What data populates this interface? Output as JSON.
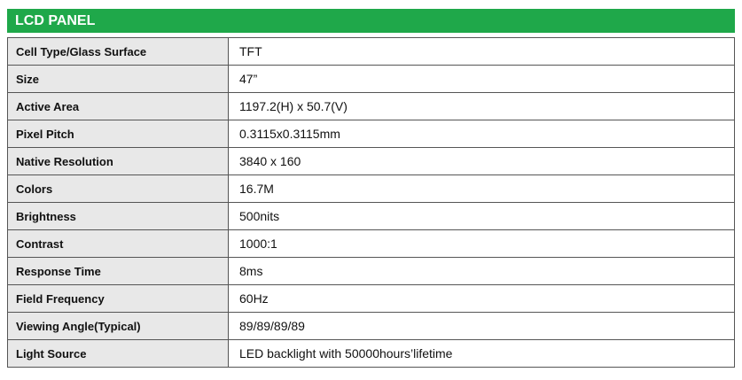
{
  "header": {
    "title": "LCD PANEL"
  },
  "table": {
    "rows": [
      [
        "Cell Type/Glass Surface",
        "TFT"
      ],
      [
        "Size",
        "47”"
      ],
      [
        "Active Area",
        "1197.2(H) x 50.7(V)"
      ],
      [
        "Pixel Pitch",
        "0.3115x0.3115mm"
      ],
      [
        "Native Resolution",
        "3840 x 160"
      ],
      [
        "Colors",
        "16.7M"
      ],
      [
        "Brightness",
        "500nits"
      ],
      [
        "Contrast",
        "1000:1"
      ],
      [
        "Response Time",
        "8ms"
      ],
      [
        "Field Frequency",
        "60Hz"
      ],
      [
        "Viewing Angle(Typical)",
        "89/89/89/89"
      ],
      [
        "Light Source",
        "LED backlight with 50000hours’lifetime"
      ]
    ]
  }
}
